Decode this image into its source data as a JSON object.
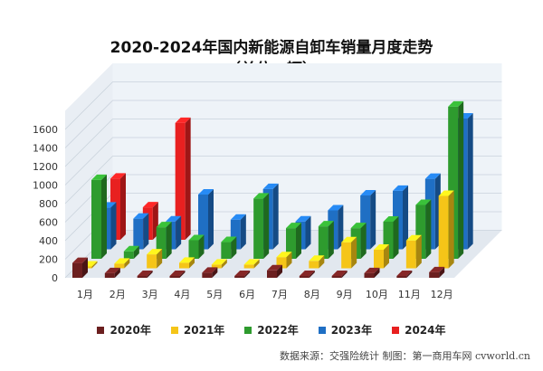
{
  "chart_data": {
    "type": "bar",
    "title": "2020-2024年国内新能源自卸车销量月度走势",
    "subtitle": "（单位：辆）",
    "categories": [
      "1月",
      "2月",
      "3月",
      "4月",
      "5月",
      "6月",
      "7月",
      "8月",
      "9月",
      "10月",
      "11月",
      "12月"
    ],
    "series": [
      {
        "name": "2020年",
        "color": "#6b1f1f",
        "values": [
          160,
          50,
          0,
          0,
          55,
          0,
          80,
          0,
          0,
          50,
          0,
          60
        ]
      },
      {
        "name": "2021年",
        "color": "#f5c518",
        "values": [
          20,
          50,
          150,
          60,
          40,
          40,
          120,
          80,
          280,
          200,
          300,
          780
        ]
      },
      {
        "name": "2022年",
        "color": "#2e9b2e",
        "values": [
          850,
          80,
          340,
          200,
          180,
          650,
          330,
          350,
          330,
          400,
          580,
          1640
        ]
      },
      {
        "name": "2023年",
        "color": "#1f6fc4",
        "values": [
          450,
          330,
          300,
          590,
          320,
          650,
          300,
          420,
          580,
          630,
          760,
          1410
        ]
      },
      {
        "name": "2024年",
        "color": "#e82020",
        "values": [
          660,
          350,
          1260,
          null,
          null,
          null,
          null,
          null,
          null,
          null,
          null,
          null
        ]
      }
    ],
    "yticks": [
      0,
      200,
      400,
      600,
      800,
      1000,
      1200,
      1400,
      1600
    ],
    "ylim": [
      0,
      1800
    ],
    "legend_position": "bottom"
  },
  "footer": {
    "source": "数据来源：交强险统计  制图：第一商用车网 cvworld.cn"
  }
}
